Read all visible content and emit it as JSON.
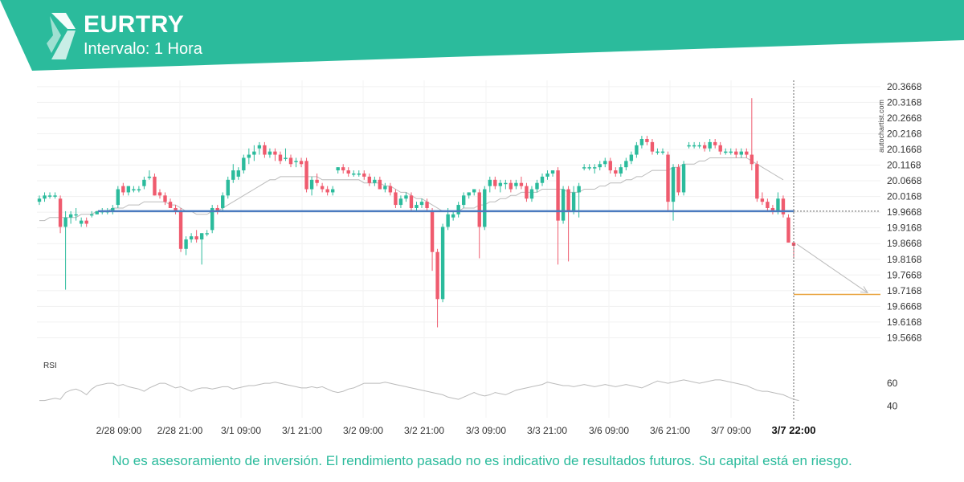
{
  "header": {
    "symbol": "EURTRY",
    "interval": "Intervalo: 1 Hora",
    "logo_icon": "autochartist-logo-icon",
    "brand_color": "#2bbb9c"
  },
  "watermark": "autochartist.com",
  "disclaimer": "No es asesoramiento de inversión. El rendimiento pasado no es indicativo de resultados futuros. Su capital está en riesgo.",
  "chart_data": {
    "type": "candlestick",
    "ylim": [
      19.5168,
      20.3868
    ],
    "y_ticks": [
      20.3668,
      20.3168,
      20.2668,
      20.2168,
      20.1668,
      20.1168,
      20.0668,
      20.0168,
      19.9668,
      19.9168,
      19.8668,
      19.8168,
      19.7668,
      19.7168,
      19.6668,
      19.6168,
      19.5668
    ],
    "x_ticks": [
      "2/28 09:00",
      "2/28 21:00",
      "3/1 09:00",
      "3/1 21:00",
      "3/2 09:00",
      "3/2 21:00",
      "3/3 09:00",
      "3/3 21:00",
      "3/6 09:00",
      "3/6 21:00",
      "3/7 09:00",
      "3/7 22:00"
    ],
    "current_time_label": "3/7 22:00",
    "up_color": "#2bbb9c",
    "down_color": "#ef5b6e",
    "support_level": 19.97,
    "support_color": "#4b7bbf",
    "target_level": 19.705,
    "target_color": "#e8a13a",
    "candles": [
      {
        "o": 20.0,
        "h": 20.02,
        "l": 19.99,
        "c": 20.01
      },
      {
        "o": 20.01,
        "h": 20.03,
        "l": 20.0,
        "c": 20.02
      },
      {
        "o": 20.02,
        "h": 20.03,
        "l": 20.01,
        "c": 20.02
      },
      {
        "o": 20.02,
        "h": 20.03,
        "l": 20.01,
        "c": 20.02
      },
      {
        "o": 20.01,
        "h": 20.02,
        "l": 19.9,
        "c": 19.92
      },
      {
        "o": 19.92,
        "h": 19.97,
        "l": 19.72,
        "c": 19.95
      },
      {
        "o": 19.95,
        "h": 19.97,
        "l": 19.93,
        "c": 19.96
      },
      {
        "o": 19.96,
        "h": 19.98,
        "l": 19.94,
        "c": 19.96
      },
      {
        "o": 19.93,
        "h": 19.95,
        "l": 19.92,
        "c": 19.94
      },
      {
        "o": 19.94,
        "h": 19.95,
        "l": 19.92,
        "c": 19.93
      },
      {
        "o": 19.96,
        "h": 19.97,
        "l": 19.95,
        "c": 19.96
      },
      {
        "o": 19.96,
        "h": 19.97,
        "l": 19.96,
        "c": 19.97
      },
      {
        "o": 19.97,
        "h": 19.98,
        "l": 19.96,
        "c": 19.97
      },
      {
        "o": 19.97,
        "h": 19.98,
        "l": 19.96,
        "c": 19.97
      },
      {
        "o": 19.97,
        "h": 19.99,
        "l": 19.96,
        "c": 19.98
      },
      {
        "o": 19.99,
        "h": 20.05,
        "l": 19.98,
        "c": 20.04
      },
      {
        "o": 20.05,
        "h": 20.06,
        "l": 20.02,
        "c": 20.03
      },
      {
        "o": 20.03,
        "h": 20.05,
        "l": 20.02,
        "c": 20.05
      },
      {
        "o": 20.04,
        "h": 20.05,
        "l": 20.03,
        "c": 20.04
      },
      {
        "o": 20.04,
        "h": 20.05,
        "l": 20.03,
        "c": 20.04
      },
      {
        "o": 20.05,
        "h": 20.08,
        "l": 20.04,
        "c": 20.07
      },
      {
        "o": 20.08,
        "h": 20.1,
        "l": 20.07,
        "c": 20.08
      },
      {
        "o": 20.08,
        "h": 20.09,
        "l": 20.02,
        "c": 20.02
      },
      {
        "o": 20.03,
        "h": 20.04,
        "l": 20.01,
        "c": 20.02
      },
      {
        "o": 20.02,
        "h": 20.03,
        "l": 19.99,
        "c": 20.0
      },
      {
        "o": 20.0,
        "h": 20.01,
        "l": 19.98,
        "c": 19.98
      },
      {
        "o": 19.98,
        "h": 19.99,
        "l": 19.96,
        "c": 19.97
      },
      {
        "o": 19.97,
        "h": 19.98,
        "l": 19.84,
        "c": 19.85
      },
      {
        "o": 19.85,
        "h": 19.89,
        "l": 19.83,
        "c": 19.88
      },
      {
        "o": 19.88,
        "h": 19.9,
        "l": 19.87,
        "c": 19.89
      },
      {
        "o": 19.89,
        "h": 19.91,
        "l": 19.87,
        "c": 19.88
      },
      {
        "o": 19.88,
        "h": 19.9,
        "l": 19.8,
        "c": 19.9
      },
      {
        "o": 19.9,
        "h": 19.91,
        "l": 19.89,
        "c": 19.9
      },
      {
        "o": 19.91,
        "h": 19.99,
        "l": 19.9,
        "c": 19.98
      },
      {
        "o": 19.98,
        "h": 19.99,
        "l": 19.96,
        "c": 19.97
      },
      {
        "o": 19.98,
        "h": 20.03,
        "l": 19.97,
        "c": 20.02
      },
      {
        "o": 20.02,
        "h": 20.08,
        "l": 20.01,
        "c": 20.07
      },
      {
        "o": 20.07,
        "h": 20.12,
        "l": 20.06,
        "c": 20.1
      },
      {
        "o": 20.08,
        "h": 20.11,
        "l": 20.07,
        "c": 20.1
      },
      {
        "o": 20.1,
        "h": 20.15,
        "l": 20.09,
        "c": 20.14
      },
      {
        "o": 20.14,
        "h": 20.17,
        "l": 20.12,
        "c": 20.15
      },
      {
        "o": 20.15,
        "h": 20.18,
        "l": 20.13,
        "c": 20.16
      },
      {
        "o": 20.17,
        "h": 20.19,
        "l": 20.15,
        "c": 20.18
      },
      {
        "o": 20.18,
        "h": 20.19,
        "l": 20.14,
        "c": 20.15
      },
      {
        "o": 20.15,
        "h": 20.17,
        "l": 20.14,
        "c": 20.16
      },
      {
        "o": 20.16,
        "h": 20.17,
        "l": 20.13,
        "c": 20.15
      },
      {
        "o": 20.15,
        "h": 20.16,
        "l": 20.12,
        "c": 20.13
      },
      {
        "o": 20.14,
        "h": 20.17,
        "l": 20.13,
        "c": 20.14
      },
      {
        "o": 20.14,
        "h": 20.15,
        "l": 20.11,
        "c": 20.12
      },
      {
        "o": 20.13,
        "h": 20.14,
        "l": 20.11,
        "c": 20.13
      },
      {
        "o": 20.13,
        "h": 20.14,
        "l": 20.11,
        "c": 20.12
      },
      {
        "o": 20.13,
        "h": 20.14,
        "l": 20.03,
        "c": 20.04
      },
      {
        "o": 20.04,
        "h": 20.08,
        "l": 20.02,
        "c": 20.07
      },
      {
        "o": 20.07,
        "h": 20.09,
        "l": 20.05,
        "c": 20.06
      },
      {
        "o": 20.05,
        "h": 20.06,
        "l": 20.03,
        "c": 20.04
      },
      {
        "o": 20.04,
        "h": 20.05,
        "l": 20.02,
        "c": 20.03
      },
      {
        "o": 20.03,
        "h": 20.05,
        "l": 20.02,
        "c": 20.04
      },
      {
        "o": 20.1,
        "h": 20.11,
        "l": 20.09,
        "c": 20.11
      },
      {
        "o": 20.11,
        "h": 20.12,
        "l": 20.09,
        "c": 20.1
      },
      {
        "o": 20.1,
        "h": 20.11,
        "l": 20.08,
        "c": 20.09
      },
      {
        "o": 20.09,
        "h": 20.1,
        "l": 20.08,
        "c": 20.09
      },
      {
        "o": 20.09,
        "h": 20.1,
        "l": 20.08,
        "c": 20.09
      },
      {
        "o": 20.09,
        "h": 20.1,
        "l": 20.07,
        "c": 20.08
      },
      {
        "o": 20.08,
        "h": 20.09,
        "l": 20.05,
        "c": 20.06
      },
      {
        "o": 20.06,
        "h": 20.08,
        "l": 20.05,
        "c": 20.07
      },
      {
        "o": 20.07,
        "h": 20.08,
        "l": 20.04,
        "c": 20.04
      },
      {
        "o": 20.04,
        "h": 20.06,
        "l": 20.03,
        "c": 20.05
      },
      {
        "o": 20.05,
        "h": 20.06,
        "l": 20.02,
        "c": 20.03
      },
      {
        "o": 20.03,
        "h": 20.04,
        "l": 19.98,
        "c": 19.99
      },
      {
        "o": 19.99,
        "h": 20.02,
        "l": 19.98,
        "c": 20.01
      },
      {
        "o": 20.01,
        "h": 20.03,
        "l": 20.0,
        "c": 20.02
      },
      {
        "o": 20.02,
        "h": 20.03,
        "l": 19.97,
        "c": 19.98
      },
      {
        "o": 19.98,
        "h": 20.0,
        "l": 19.97,
        "c": 19.99
      },
      {
        "o": 19.99,
        "h": 20.01,
        "l": 19.98,
        "c": 20.0
      },
      {
        "o": 20.0,
        "h": 20.01,
        "l": 19.97,
        "c": 19.98
      },
      {
        "o": 19.97,
        "h": 19.98,
        "l": 19.78,
        "c": 19.84
      },
      {
        "o": 19.84,
        "h": 19.85,
        "l": 19.6,
        "c": 19.69
      },
      {
        "o": 19.69,
        "h": 19.93,
        "l": 19.68,
        "c": 19.92
      },
      {
        "o": 19.92,
        "h": 19.98,
        "l": 19.91,
        "c": 19.96
      },
      {
        "o": 19.95,
        "h": 19.97,
        "l": 19.94,
        "c": 19.96
      },
      {
        "o": 19.96,
        "h": 20.0,
        "l": 19.95,
        "c": 19.99
      },
      {
        "o": 19.99,
        "h": 20.03,
        "l": 19.98,
        "c": 20.02
      },
      {
        "o": 20.02,
        "h": 20.03,
        "l": 20.01,
        "c": 20.03
      },
      {
        "o": 20.03,
        "h": 20.04,
        "l": 20.02,
        "c": 20.04
      },
      {
        "o": 20.03,
        "h": 20.04,
        "l": 19.82,
        "c": 19.92
      },
      {
        "o": 19.92,
        "h": 20.05,
        "l": 19.91,
        "c": 20.04
      },
      {
        "o": 20.05,
        "h": 20.08,
        "l": 20.03,
        "c": 20.07
      },
      {
        "o": 20.07,
        "h": 20.08,
        "l": 20.04,
        "c": 20.05
      },
      {
        "o": 20.05,
        "h": 20.07,
        "l": 20.03,
        "c": 20.06
      },
      {
        "o": 20.06,
        "h": 20.07,
        "l": 20.04,
        "c": 20.06
      },
      {
        "o": 20.06,
        "h": 20.07,
        "l": 20.03,
        "c": 20.04
      },
      {
        "o": 20.05,
        "h": 20.07,
        "l": 20.04,
        "c": 20.06
      },
      {
        "o": 20.06,
        "h": 20.08,
        "l": 20.04,
        "c": 20.05
      },
      {
        "o": 20.05,
        "h": 20.06,
        "l": 20.0,
        "c": 20.01
      },
      {
        "o": 20.01,
        "h": 20.05,
        "l": 20.0,
        "c": 20.04
      },
      {
        "o": 20.04,
        "h": 20.07,
        "l": 20.03,
        "c": 20.06
      },
      {
        "o": 20.06,
        "h": 20.09,
        "l": 20.05,
        "c": 20.08
      },
      {
        "o": 20.08,
        "h": 20.1,
        "l": 20.07,
        "c": 20.09
      },
      {
        "o": 20.09,
        "h": 20.1,
        "l": 20.08,
        "c": 20.1
      },
      {
        "o": 20.1,
        "h": 20.11,
        "l": 19.8,
        "c": 19.94
      },
      {
        "o": 19.94,
        "h": 20.05,
        "l": 19.93,
        "c": 20.04
      },
      {
        "o": 20.04,
        "h": 20.05,
        "l": 19.81,
        "c": 19.97
      },
      {
        "o": 19.97,
        "h": 20.05,
        "l": 19.96,
        "c": 20.03
      },
      {
        "o": 20.03,
        "h": 20.06,
        "l": 19.95,
        "c": 20.05
      },
      {
        "o": 20.11,
        "h": 20.12,
        "l": 20.1,
        "c": 20.11
      },
      {
        "o": 20.11,
        "h": 20.12,
        "l": 20.1,
        "c": 20.11
      },
      {
        "o": 20.11,
        "h": 20.12,
        "l": 20.09,
        "c": 20.11
      },
      {
        "o": 20.11,
        "h": 20.13,
        "l": 20.1,
        "c": 20.12
      },
      {
        "o": 20.12,
        "h": 20.14,
        "l": 20.11,
        "c": 20.13
      },
      {
        "o": 20.13,
        "h": 20.14,
        "l": 20.09,
        "c": 20.1
      },
      {
        "o": 20.1,
        "h": 20.11,
        "l": 20.08,
        "c": 20.09
      },
      {
        "o": 20.09,
        "h": 20.12,
        "l": 20.08,
        "c": 20.11
      },
      {
        "o": 20.11,
        "h": 20.14,
        "l": 20.1,
        "c": 20.13
      },
      {
        "o": 20.13,
        "h": 20.16,
        "l": 20.12,
        "c": 20.15
      },
      {
        "o": 20.15,
        "h": 20.19,
        "l": 20.14,
        "c": 20.18
      },
      {
        "o": 20.18,
        "h": 20.21,
        "l": 20.17,
        "c": 20.2
      },
      {
        "o": 20.2,
        "h": 20.21,
        "l": 20.18,
        "c": 20.19
      },
      {
        "o": 20.19,
        "h": 20.2,
        "l": 20.15,
        "c": 20.16
      },
      {
        "o": 20.16,
        "h": 20.17,
        "l": 20.15,
        "c": 20.16
      },
      {
        "o": 20.16,
        "h": 20.17,
        "l": 20.15,
        "c": 20.16
      },
      {
        "o": 20.15,
        "h": 20.16,
        "l": 19.97,
        "c": 20.0
      },
      {
        "o": 20.0,
        "h": 20.12,
        "l": 19.94,
        "c": 20.11
      },
      {
        "o": 20.11,
        "h": 20.12,
        "l": 20.02,
        "c": 20.03
      },
      {
        "o": 20.03,
        "h": 20.13,
        "l": 20.02,
        "c": 20.12
      },
      {
        "o": 20.18,
        "h": 20.19,
        "l": 20.17,
        "c": 20.18
      },
      {
        "o": 20.18,
        "h": 20.19,
        "l": 20.17,
        "c": 20.18
      },
      {
        "o": 20.18,
        "h": 20.19,
        "l": 20.17,
        "c": 20.18
      },
      {
        "o": 20.18,
        "h": 20.19,
        "l": 20.16,
        "c": 20.17
      },
      {
        "o": 20.17,
        "h": 20.2,
        "l": 20.16,
        "c": 20.19
      },
      {
        "o": 20.19,
        "h": 20.2,
        "l": 20.17,
        "c": 20.18
      },
      {
        "o": 20.18,
        "h": 20.19,
        "l": 20.15,
        "c": 20.16
      },
      {
        "o": 20.16,
        "h": 20.17,
        "l": 20.15,
        "c": 20.16
      },
      {
        "o": 20.16,
        "h": 20.17,
        "l": 20.15,
        "c": 20.16
      },
      {
        "o": 20.16,
        "h": 20.17,
        "l": 20.14,
        "c": 20.15
      },
      {
        "o": 20.15,
        "h": 20.17,
        "l": 20.14,
        "c": 20.16
      },
      {
        "o": 20.16,
        "h": 20.17,
        "l": 20.14,
        "c": 20.15
      },
      {
        "o": 20.15,
        "h": 20.33,
        "l": 20.1,
        "c": 20.12
      },
      {
        "o": 20.12,
        "h": 20.13,
        "l": 20.0,
        "c": 20.01
      },
      {
        "o": 20.01,
        "h": 20.03,
        "l": 19.99,
        "c": 20.0
      },
      {
        "o": 20.0,
        "h": 20.01,
        "l": 19.97,
        "c": 19.98
      },
      {
        "o": 19.98,
        "h": 19.99,
        "l": 19.96,
        "c": 19.97
      },
      {
        "o": 19.97,
        "h": 20.03,
        "l": 19.96,
        "c": 20.01
      },
      {
        "o": 20.01,
        "h": 20.02,
        "l": 19.95,
        "c": 19.96
      },
      {
        "o": 19.95,
        "h": 19.96,
        "l": 19.87,
        "c": 19.87
      },
      {
        "o": 19.87,
        "h": 19.87,
        "l": 19.82,
        "c": 19.86
      }
    ],
    "moving_average": [
      19.94,
      19.94,
      19.95,
      19.95,
      19.95,
      19.95,
      19.95,
      19.95,
      19.96,
      19.96,
      19.96,
      19.97,
      19.97,
      19.97,
      19.98,
      19.98,
      19.98,
      19.99,
      19.99,
      19.99,
      20.0,
      20.0,
      20.0,
      20.0,
      20.0,
      19.99,
      19.99,
      19.98,
      19.97,
      19.97,
      19.96,
      19.96,
      19.96,
      19.97,
      19.97,
      19.98,
      19.99,
      20.0,
      20.01,
      20.02,
      20.03,
      20.04,
      20.05,
      20.06,
      20.07,
      20.07,
      20.08,
      20.08,
      20.08,
      20.08,
      20.08,
      20.08,
      20.08,
      20.08,
      20.07,
      20.07,
      20.07,
      20.07,
      20.07,
      20.07,
      20.07,
      20.07,
      20.06,
      20.06,
      20.06,
      20.06,
      20.05,
      20.05,
      20.04,
      20.03,
      20.03,
      20.02,
      20.01,
      20.01,
      20.0,
      19.99,
      19.98,
      19.97,
      19.97,
      19.97,
      19.97,
      19.98,
      19.98,
      19.98,
      19.99,
      19.99,
      20.0,
      20.0,
      20.01,
      20.01,
      20.02,
      20.02,
      20.03,
      20.03,
      20.03,
      20.03,
      20.04,
      20.04,
      20.04,
      20.04,
      20.04,
      20.03,
      20.03,
      20.03,
      20.04,
      20.04,
      20.04,
      20.05,
      20.05,
      20.06,
      20.06,
      20.06,
      20.07,
      20.07,
      20.08,
      20.08,
      20.09,
      20.1,
      20.1,
      20.1,
      20.1,
      20.11,
      20.11,
      20.12,
      20.12,
      20.12,
      20.13,
      20.13,
      20.14,
      20.14,
      20.14,
      20.14,
      20.14,
      20.14,
      20.14,
      20.14,
      20.13,
      20.12,
      20.11,
      20.1,
      20.09,
      20.08,
      20.07
    ],
    "rsi": {
      "label": "RSI",
      "ticks": [
        60,
        40
      ],
      "range": [
        30,
        72
      ],
      "values": [
        45,
        45,
        46,
        47,
        46,
        52,
        54,
        55,
        53,
        50,
        55,
        58,
        59,
        60,
        60,
        58,
        59,
        57,
        56,
        55,
        53,
        56,
        58,
        60,
        60,
        58,
        56,
        57,
        55,
        53,
        55,
        56,
        56,
        55,
        56,
        57,
        57,
        55,
        56,
        57,
        58,
        58,
        59,
        60,
        60,
        61,
        60,
        59,
        58,
        57,
        56,
        56,
        57,
        56,
        57,
        55,
        53,
        52,
        53,
        55,
        56,
        58,
        60,
        60,
        60,
        60,
        61,
        60,
        59,
        58,
        57,
        56,
        55,
        54,
        53,
        52,
        51,
        50,
        48,
        47,
        46,
        48,
        50,
        52,
        50,
        49,
        50,
        52,
        51,
        50,
        52,
        54,
        55,
        56,
        57,
        58,
        59,
        61,
        60,
        59,
        58,
        58,
        57,
        58,
        59,
        58,
        57,
        58,
        59,
        58,
        57,
        58,
        59,
        58,
        57,
        56,
        58,
        60,
        62,
        61,
        60,
        61,
        62,
        63,
        62,
        61,
        60,
        61,
        62,
        63,
        63,
        62,
        61,
        60,
        59,
        58,
        56,
        54,
        53,
        53,
        52,
        51,
        50,
        48,
        46,
        45
      ]
    }
  }
}
